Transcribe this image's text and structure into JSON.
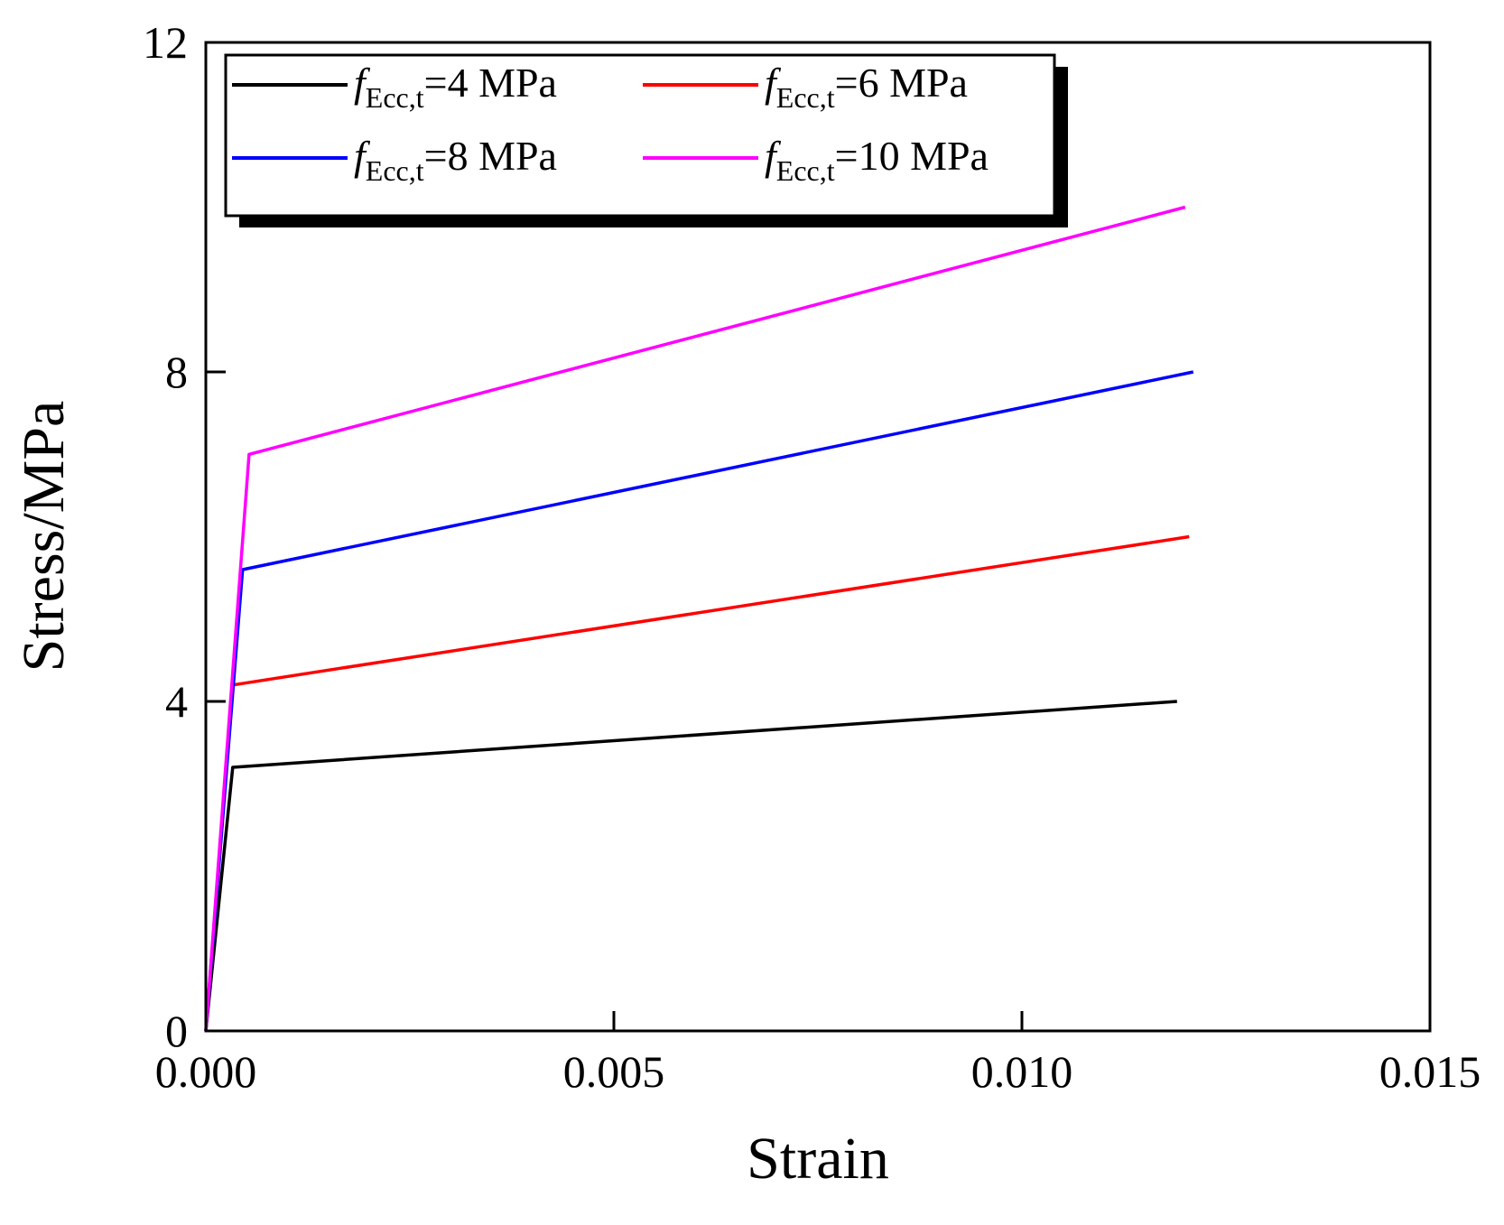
{
  "chart_data": {
    "type": "line",
    "title": "",
    "xlabel": "Strain",
    "ylabel": "Stress/MPa",
    "xlim": [
      0,
      0.015
    ],
    "ylim": [
      0,
      12
    ],
    "xticks": [
      0,
      0.005,
      0.01,
      0.015
    ],
    "xtick_labels": [
      "0.000",
      "0.005",
      "0.010",
      "0.015"
    ],
    "yticks": [
      0,
      4,
      8,
      12
    ],
    "ytick_labels": [
      "0",
      "4",
      "8",
      "12"
    ],
    "grid": false,
    "legend_position": "top-left",
    "legend_prefix": "f",
    "legend_subscript": "Ecc,t",
    "series": [
      {
        "name": "fEcc,t=4 MPa",
        "label_value": "=4 MPa",
        "color": "#000000",
        "x": [
          0,
          0.00033,
          0.0119
        ],
        "y": [
          0,
          3.2,
          4.0
        ]
      },
      {
        "name": "fEcc,t=6 MPa",
        "label_value": "=6 MPa",
        "color": "#ff0000",
        "x": [
          0,
          0.00033,
          0.01205
        ],
        "y": [
          0,
          4.2,
          6.0
        ]
      },
      {
        "name": "fEcc,t=8 MPa",
        "label_value": "=8 MPa",
        "color": "#0000ff",
        "x": [
          0,
          0.00045,
          0.0121
        ],
        "y": [
          0,
          5.6,
          8.0
        ]
      },
      {
        "name": "fEcc,t=10 MPa",
        "label_value": "=10 MPa",
        "color": "#ff00ff",
        "x": [
          0,
          0.00053,
          0.012
        ],
        "y": [
          0,
          7.0,
          10.0
        ]
      }
    ]
  }
}
